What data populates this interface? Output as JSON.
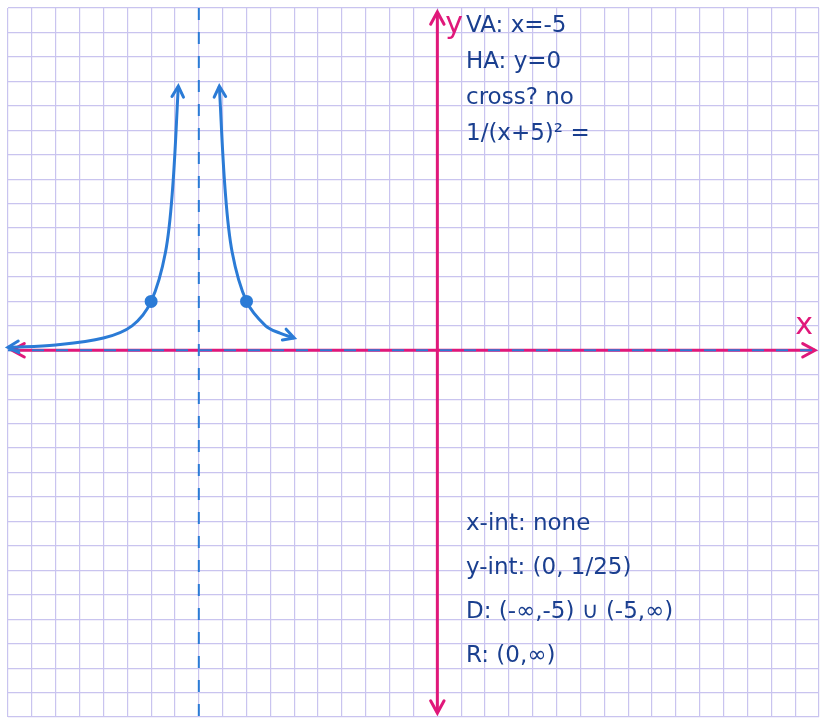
{
  "chart_data": {
    "type": "line",
    "xlabel": "x",
    "ylabel": "y",
    "annotations": [
      [
        "VA: x=-5",
        "HA: y=0",
        "cross? no",
        "1/(x+5)² ="
      ],
      [
        "x-int: none",
        "y-int: (0, 1/25)",
        "D: (-∞,-5) ∪ (-5,∞)",
        "R: (0,∞)"
      ]
    ],
    "vertical_asymptote": -5,
    "horizontal_asymptote": 0,
    "series": [
      {
        "type": "line",
        "color": "#2b7bd6",
        "marker": "none",
        "x": [
          -9,
          -8,
          -7,
          -6.4,
          -6,
          -5.7,
          -5.55,
          -5.43
        ],
        "values": [
          0.06,
          0.11,
          0.25,
          0.5,
          1,
          2,
          3.3,
          5.4
        ]
      },
      {
        "type": "line",
        "color": "#2b7bd6",
        "marker": "none",
        "x": [
          -4.57,
          -4.45,
          -4.3,
          -4,
          -3.6,
          -3.3,
          -3
        ],
        "values": [
          5.4,
          3.3,
          2,
          1,
          0.5,
          0.35,
          0.25
        ]
      },
      {
        "type": "scatter",
        "color": "#2b7bd6",
        "marker": "circle",
        "x": [
          -6,
          -4
        ],
        "values": [
          1,
          1
        ]
      }
    ],
    "xlim": [
      -9,
      8
    ],
    "xticks": [
      -9,
      -8.5,
      -8,
      -7.5,
      -7,
      -6.5,
      -6,
      -5.5,
      -5,
      -4.5,
      -4,
      -3.5,
      -3,
      -2.5,
      -2,
      -1.5,
      -1,
      -0.5,
      0,
      0.5,
      1,
      1.5,
      2,
      2.5,
      3,
      3.5,
      4,
      4.5,
      5,
      5.5,
      6,
      6.5,
      7,
      7.5,
      8
    ],
    "ylim": [
      -7.5,
      7
    ],
    "yticks": [
      -7.5,
      -7,
      -6.5,
      -6,
      -5.5,
      -5,
      -4.5,
      -4,
      -3.5,
      -3,
      -2.5,
      -2,
      -1.5,
      -1,
      -0.5,
      0,
      0.5,
      1,
      1.5,
      2,
      2.5,
      3,
      3.5,
      4,
      4.5,
      5,
      5.5,
      6,
      6.5,
      7
    ],
    "grid": true,
    "tick_labels": false
  }
}
